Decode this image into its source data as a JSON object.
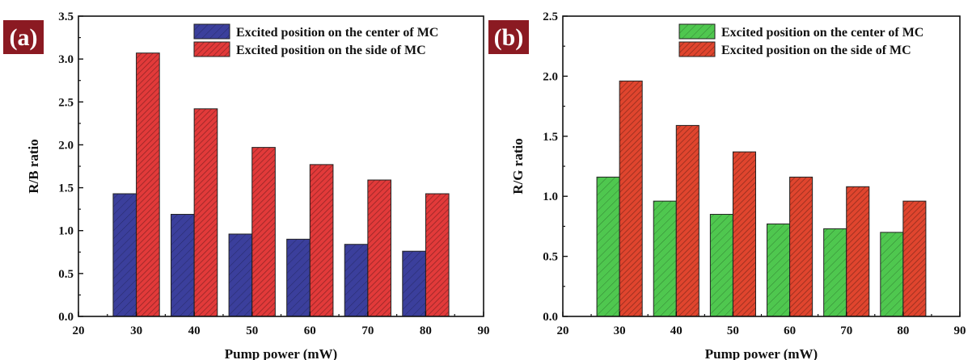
{
  "chart_data": [
    {
      "type": "bar",
      "panel_label": "(a)",
      "xlabel": "Pump power (mW)",
      "ylabel": "R/B ratio",
      "xlim": [
        20,
        90
      ],
      "ylim": [
        0,
        3.5
      ],
      "xticks": [
        "20",
        "30",
        "40",
        "50",
        "60",
        "70",
        "80",
        "90"
      ],
      "yticks": [
        "0.0",
        "0.5",
        "1.0",
        "1.5",
        "2.0",
        "2.5",
        "3.0",
        "3.5"
      ],
      "categories": [
        30,
        40,
        50,
        60,
        70,
        80
      ],
      "legend_position": "top-right",
      "grid": false,
      "series": [
        {
          "name": "Excited position on the center of MC",
          "color": "#3b3f9c",
          "pattern": "hatch-light",
          "values": [
            1.43,
            1.19,
            0.96,
            0.9,
            0.84,
            0.76
          ]
        },
        {
          "name": "Excited position on the side of MC",
          "color": "#e23a3a",
          "pattern": "hatch-dense",
          "values": [
            3.07,
            2.42,
            1.97,
            1.77,
            1.59,
            1.43
          ]
        }
      ]
    },
    {
      "type": "bar",
      "panel_label": "(b)",
      "xlabel": "Pump power (mW)",
      "ylabel": "R/G ratio",
      "xlim": [
        20,
        90
      ],
      "ylim": [
        0,
        2.5
      ],
      "xticks": [
        "20",
        "30",
        "40",
        "50",
        "60",
        "70",
        "80",
        "90"
      ],
      "yticks": [
        "0.0",
        "0.5",
        "1.0",
        "1.5",
        "2.0",
        "2.5"
      ],
      "categories": [
        30,
        40,
        50,
        60,
        70,
        80
      ],
      "legend_position": "top-right",
      "grid": false,
      "series": [
        {
          "name": "Excited position on the center of MC",
          "color": "#4fc74f",
          "pattern": "hatch-light",
          "values": [
            1.16,
            0.96,
            0.85,
            0.77,
            0.73,
            0.7
          ]
        },
        {
          "name": "Excited position on the side of MC",
          "color": "#e0452e",
          "pattern": "hatch-dense",
          "values": [
            1.96,
            1.59,
            1.37,
            1.16,
            1.08,
            0.96
          ]
        }
      ]
    }
  ]
}
